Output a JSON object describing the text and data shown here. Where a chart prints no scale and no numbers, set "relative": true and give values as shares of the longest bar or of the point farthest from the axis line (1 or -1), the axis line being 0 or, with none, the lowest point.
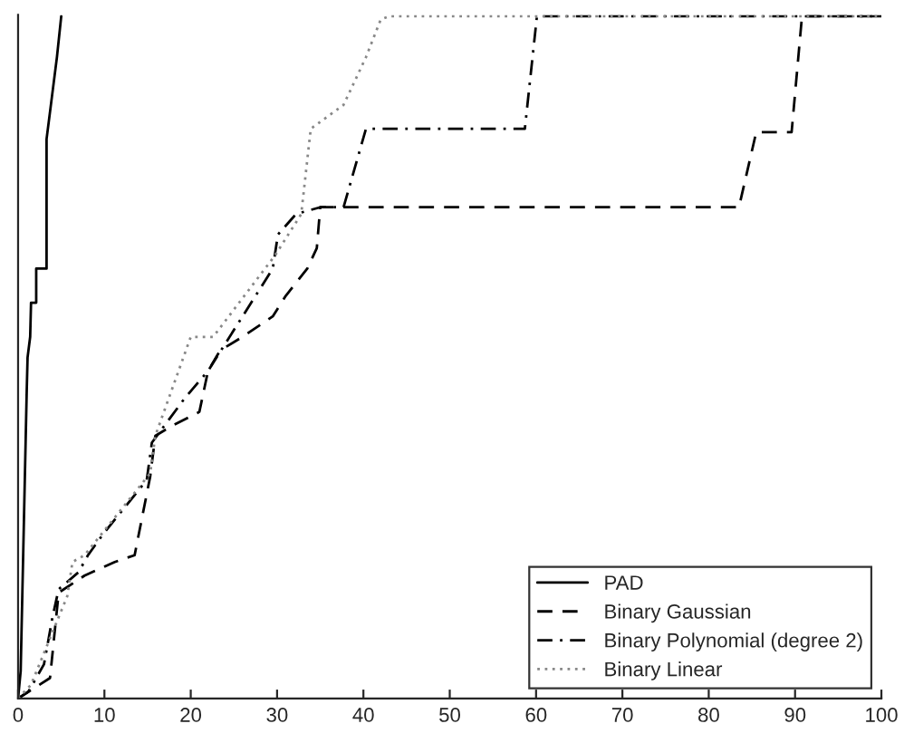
{
  "chart_data": {
    "type": "line",
    "relative": true,
    "xlim": [
      0,
      100
    ],
    "xticks": [
      0,
      10,
      20,
      30,
      40,
      50,
      60,
      70,
      80,
      90,
      100
    ],
    "legend": "bottom right",
    "grid": false,
    "series": [
      {
        "name": "PAD",
        "color": "#000000",
        "line_style": "solid",
        "x": [
          0,
          0.3,
          1.0,
          1.1,
          1.4,
          1.5,
          2.1,
          2.1,
          3.3,
          3.3,
          3.7,
          4.5,
          5.0
        ],
        "values": [
          0,
          0.04,
          0.45,
          0.5,
          0.53,
          0.58,
          0.58,
          0.63,
          0.63,
          0.82,
          0.86,
          0.94,
          1.0
        ]
      },
      {
        "name": "Binary Gaussian",
        "color": "#000000",
        "line_style": "dashed",
        "x": [
          0,
          3.7,
          4.7,
          7.7,
          11.2,
          13.5,
          15.3,
          15.9,
          17.9,
          21,
          22,
          23.4,
          26,
          29.5,
          31,
          33.5,
          34.6,
          35,
          83.5,
          85.5,
          89.6,
          90.8,
          100
        ],
        "values": [
          0,
          0.03,
          0.155,
          0.18,
          0.2,
          0.21,
          0.325,
          0.385,
          0.4,
          0.42,
          0.48,
          0.51,
          0.53,
          0.56,
          0.59,
          0.63,
          0.66,
          0.72,
          0.72,
          0.83,
          0.83,
          1.0,
          1.0
        ]
      },
      {
        "name": "Binary Polynomial (degree 2)",
        "color": "#000000",
        "line_style": "dashdot",
        "x": [
          0,
          1.2,
          3,
          4,
          4.7,
          7,
          8.1,
          9.8,
          14.9,
          15.5,
          19.3,
          22,
          27.5,
          29.5,
          30.1,
          32.2,
          35,
          37.7,
          40.3,
          58.7,
          60.1,
          100
        ],
        "values": [
          0,
          0.01,
          0.05,
          0.12,
          0.16,
          0.185,
          0.21,
          0.24,
          0.32,
          0.375,
          0.44,
          0.48,
          0.59,
          0.63,
          0.68,
          0.71,
          0.72,
          0.72,
          0.835,
          0.835,
          1.0,
          1.0
        ]
      },
      {
        "name": "Binary Linear",
        "color": "#888888",
        "line_style": "dotted",
        "x": [
          0,
          1.5,
          5.7,
          6.3,
          7.7,
          15.3,
          15.9,
          20,
          22.6,
          29.8,
          32.8,
          33.9,
          37.7,
          40.3,
          42,
          43,
          100
        ],
        "values": [
          0,
          0.02,
          0.15,
          0.2,
          0.21,
          0.33,
          0.385,
          0.53,
          0.53,
          0.65,
          0.71,
          0.835,
          0.87,
          0.94,
          0.995,
          1.0,
          1.0
        ]
      }
    ]
  }
}
